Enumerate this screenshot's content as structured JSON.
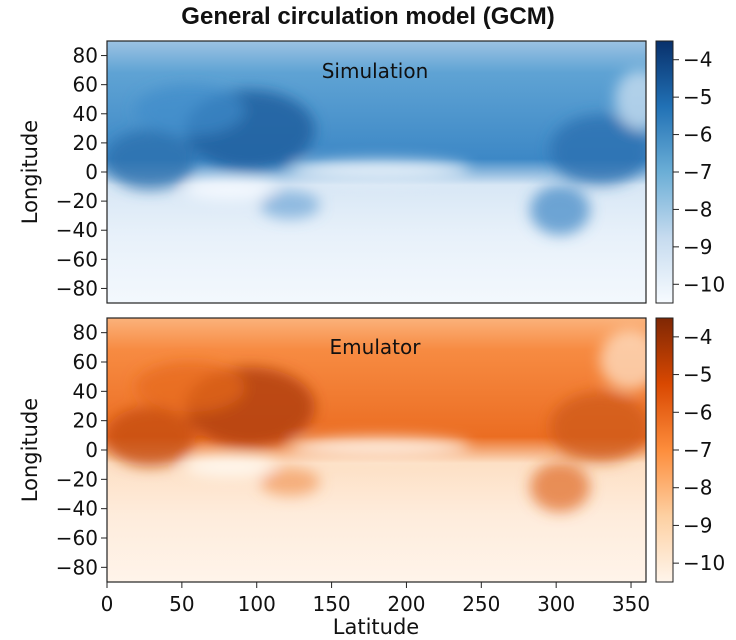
{
  "title": "General circulation model (GCM)",
  "chart_data": [
    {
      "type": "heatmap",
      "panel_label": "Simulation",
      "colormap": "Blues",
      "colors": {
        "low": "#f7fbff",
        "high": "#08306b"
      },
      "xlabel": "",
      "ylabel": "Longitude",
      "xlim": [
        0,
        360
      ],
      "ylim": [
        -90,
        90
      ],
      "y_ticks": [
        80,
        60,
        40,
        20,
        0,
        -20,
        -40,
        -60,
        -80
      ],
      "y_tick_labels": [
        "80",
        "60",
        "40",
        "20",
        "0",
        "−20",
        "−40",
        "−60",
        "−80"
      ],
      "colorbar": {
        "range": [
          -10.5,
          -3.5
        ],
        "ticks": [
          -4,
          -5,
          -6,
          -7,
          -8,
          -9,
          -10
        ],
        "tick_labels": [
          "−4",
          "−5",
          "−6",
          "−7",
          "−8",
          "−9",
          "−10"
        ]
      },
      "grid": false
    },
    {
      "type": "heatmap",
      "panel_label": "Emulator",
      "colormap": "Oranges",
      "colors": {
        "low": "#fff5eb",
        "high": "#7f2704"
      },
      "xlabel": "Latitude",
      "ylabel": "Longitude",
      "xlim": [
        0,
        360
      ],
      "ylim": [
        -90,
        90
      ],
      "x_ticks": [
        0,
        50,
        100,
        150,
        200,
        250,
        300,
        350
      ],
      "x_tick_labels": [
        "0",
        "50",
        "100",
        "150",
        "200",
        "250",
        "300",
        "350"
      ],
      "y_ticks": [
        80,
        60,
        40,
        20,
        0,
        -20,
        -40,
        -60,
        -80
      ],
      "y_tick_labels": [
        "80",
        "60",
        "40",
        "20",
        "0",
        "−20",
        "−40",
        "−60",
        "−80"
      ],
      "colorbar": {
        "range": [
          -10.5,
          -3.5
        ],
        "ticks": [
          -4,
          -5,
          -6,
          -7,
          -8,
          -9,
          -10
        ],
        "tick_labels": [
          "−4",
          "−5",
          "−6",
          "−7",
          "−8",
          "−9",
          "−10"
        ]
      },
      "grid": false
    }
  ]
}
